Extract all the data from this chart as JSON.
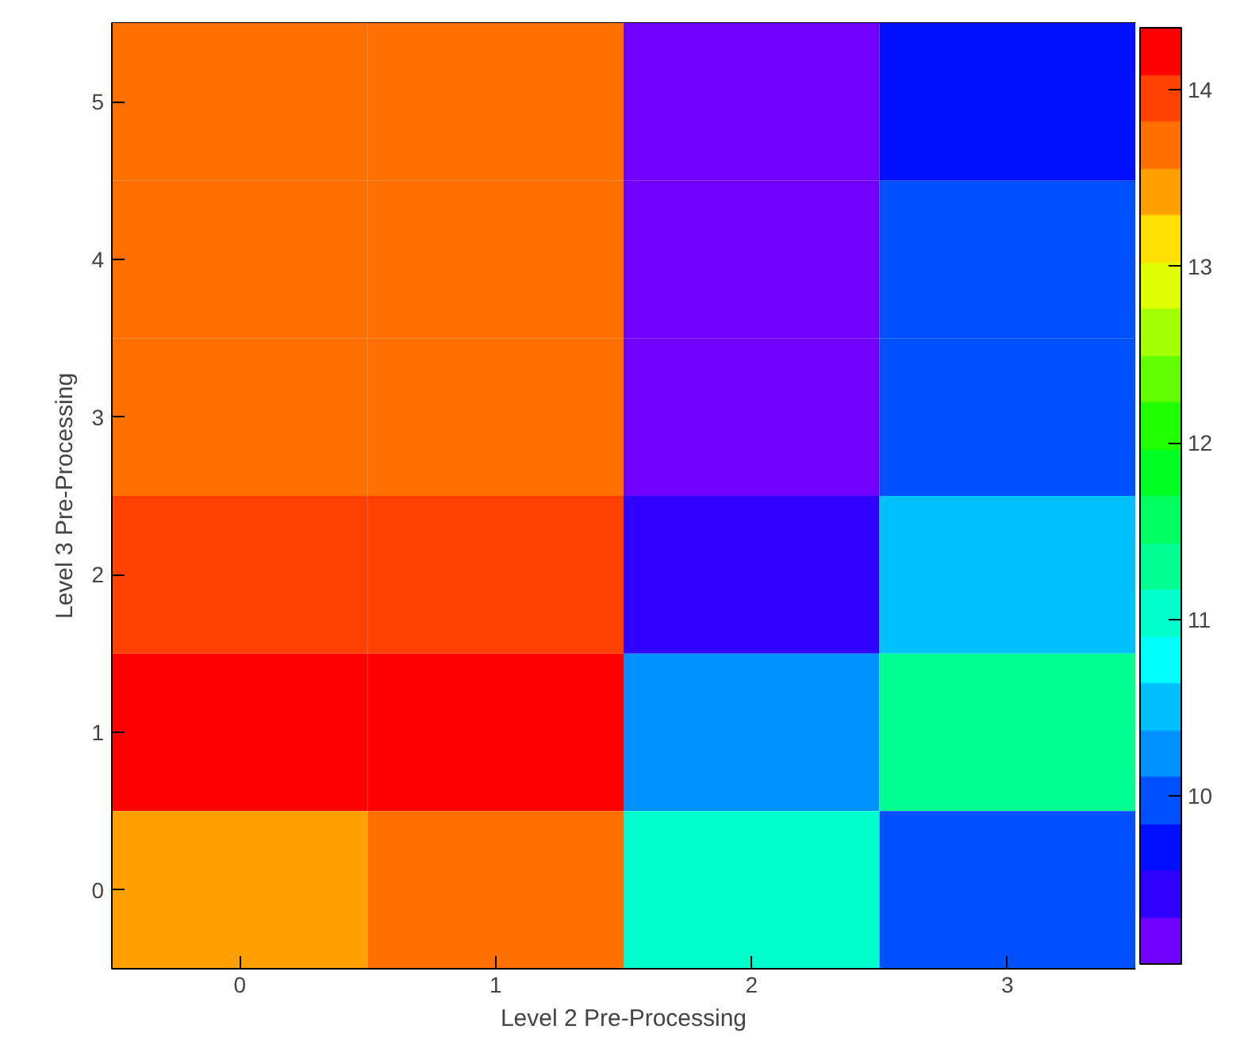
{
  "chart_data": {
    "type": "heatmap",
    "xlabel": "Level 2 Pre-Processing",
    "ylabel": "Level 3 Pre-Processing",
    "categories": [
      "0",
      "1",
      "2",
      "3"
    ],
    "y_categories": [
      "5",
      "4",
      "3",
      "2",
      "1",
      "0"
    ],
    "cells": [
      [
        13.7,
        13.7,
        9.2,
        9.7
      ],
      [
        13.7,
        13.7,
        9.2,
        10.0
      ],
      [
        13.7,
        13.7,
        9.2,
        10.0
      ],
      [
        13.95,
        13.95,
        9.4,
        10.5
      ],
      [
        14.2,
        14.2,
        10.2,
        11.3
      ],
      [
        13.4,
        13.7,
        11.0,
        10.0
      ]
    ],
    "clim": [
      9.05,
      14.35
    ],
    "cticks": [
      10,
      11,
      12,
      13,
      14
    ]
  }
}
